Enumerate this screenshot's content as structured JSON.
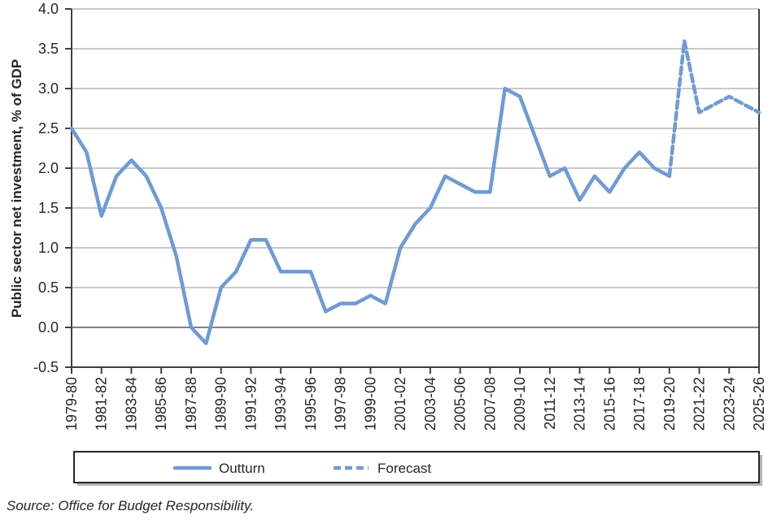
{
  "page": {
    "source_note": "Source: Office for Budget Responsibility."
  },
  "chart_data": {
    "type": "line",
    "title": "",
    "xlabel": "",
    "ylabel": "Public sector net investment, % of GDP",
    "ylim": [
      -0.5,
      4.0
    ],
    "ytick_step": 0.5,
    "ytick_labels": [
      "4.0",
      "3.5",
      "3.0",
      "2.5",
      "2.0",
      "1.5",
      "1.0",
      "0.5",
      "0.0",
      "-0.5"
    ],
    "grid": "horizontal",
    "legend_position": "bottom",
    "line_color": "#6D9BD8",
    "xtick_every": 2,
    "categories": [
      "1979-80",
      "1980-81",
      "1981-82",
      "1982-83",
      "1983-84",
      "1984-85",
      "1985-86",
      "1986-87",
      "1987-88",
      "1988-89",
      "1989-90",
      "1990-91",
      "1991-92",
      "1992-93",
      "1993-94",
      "1994-95",
      "1995-96",
      "1996-97",
      "1997-98",
      "1998-99",
      "1999-00",
      "2000-01",
      "2001-02",
      "2002-03",
      "2003-04",
      "2004-05",
      "2005-06",
      "2006-07",
      "2007-08",
      "2008-09",
      "2009-10",
      "2010-11",
      "2011-12",
      "2012-13",
      "2013-14",
      "2014-15",
      "2015-16",
      "2016-17",
      "2017-18",
      "2018-19",
      "2019-20",
      "2020-21",
      "2021-22",
      "2022-23",
      "2023-24",
      "2024-25",
      "2025-26"
    ],
    "series": [
      {
        "name": "Outturn",
        "style": "solid",
        "values": [
          2.5,
          2.2,
          1.4,
          1.9,
          2.1,
          1.9,
          1.5,
          0.9,
          0.0,
          -0.2,
          0.5,
          0.7,
          1.1,
          1.1,
          0.7,
          0.7,
          0.7,
          0.2,
          0.3,
          0.3,
          0.4,
          0.3,
          1.0,
          1.3,
          1.5,
          1.9,
          1.8,
          1.7,
          1.7,
          3.0,
          2.9,
          2.4,
          1.9,
          2.0,
          1.6,
          1.9,
          1.7,
          2.0,
          2.2,
          2.0,
          1.9,
          null,
          null,
          null,
          null,
          null,
          null
        ]
      },
      {
        "name": "Forecast",
        "style": "dashed",
        "values": [
          null,
          null,
          null,
          null,
          null,
          null,
          null,
          null,
          null,
          null,
          null,
          null,
          null,
          null,
          null,
          null,
          null,
          null,
          null,
          null,
          null,
          null,
          null,
          null,
          null,
          null,
          null,
          null,
          null,
          null,
          null,
          null,
          null,
          null,
          null,
          null,
          null,
          null,
          null,
          null,
          1.9,
          3.6,
          2.7,
          2.8,
          2.9,
          2.8,
          2.7
        ]
      }
    ]
  }
}
